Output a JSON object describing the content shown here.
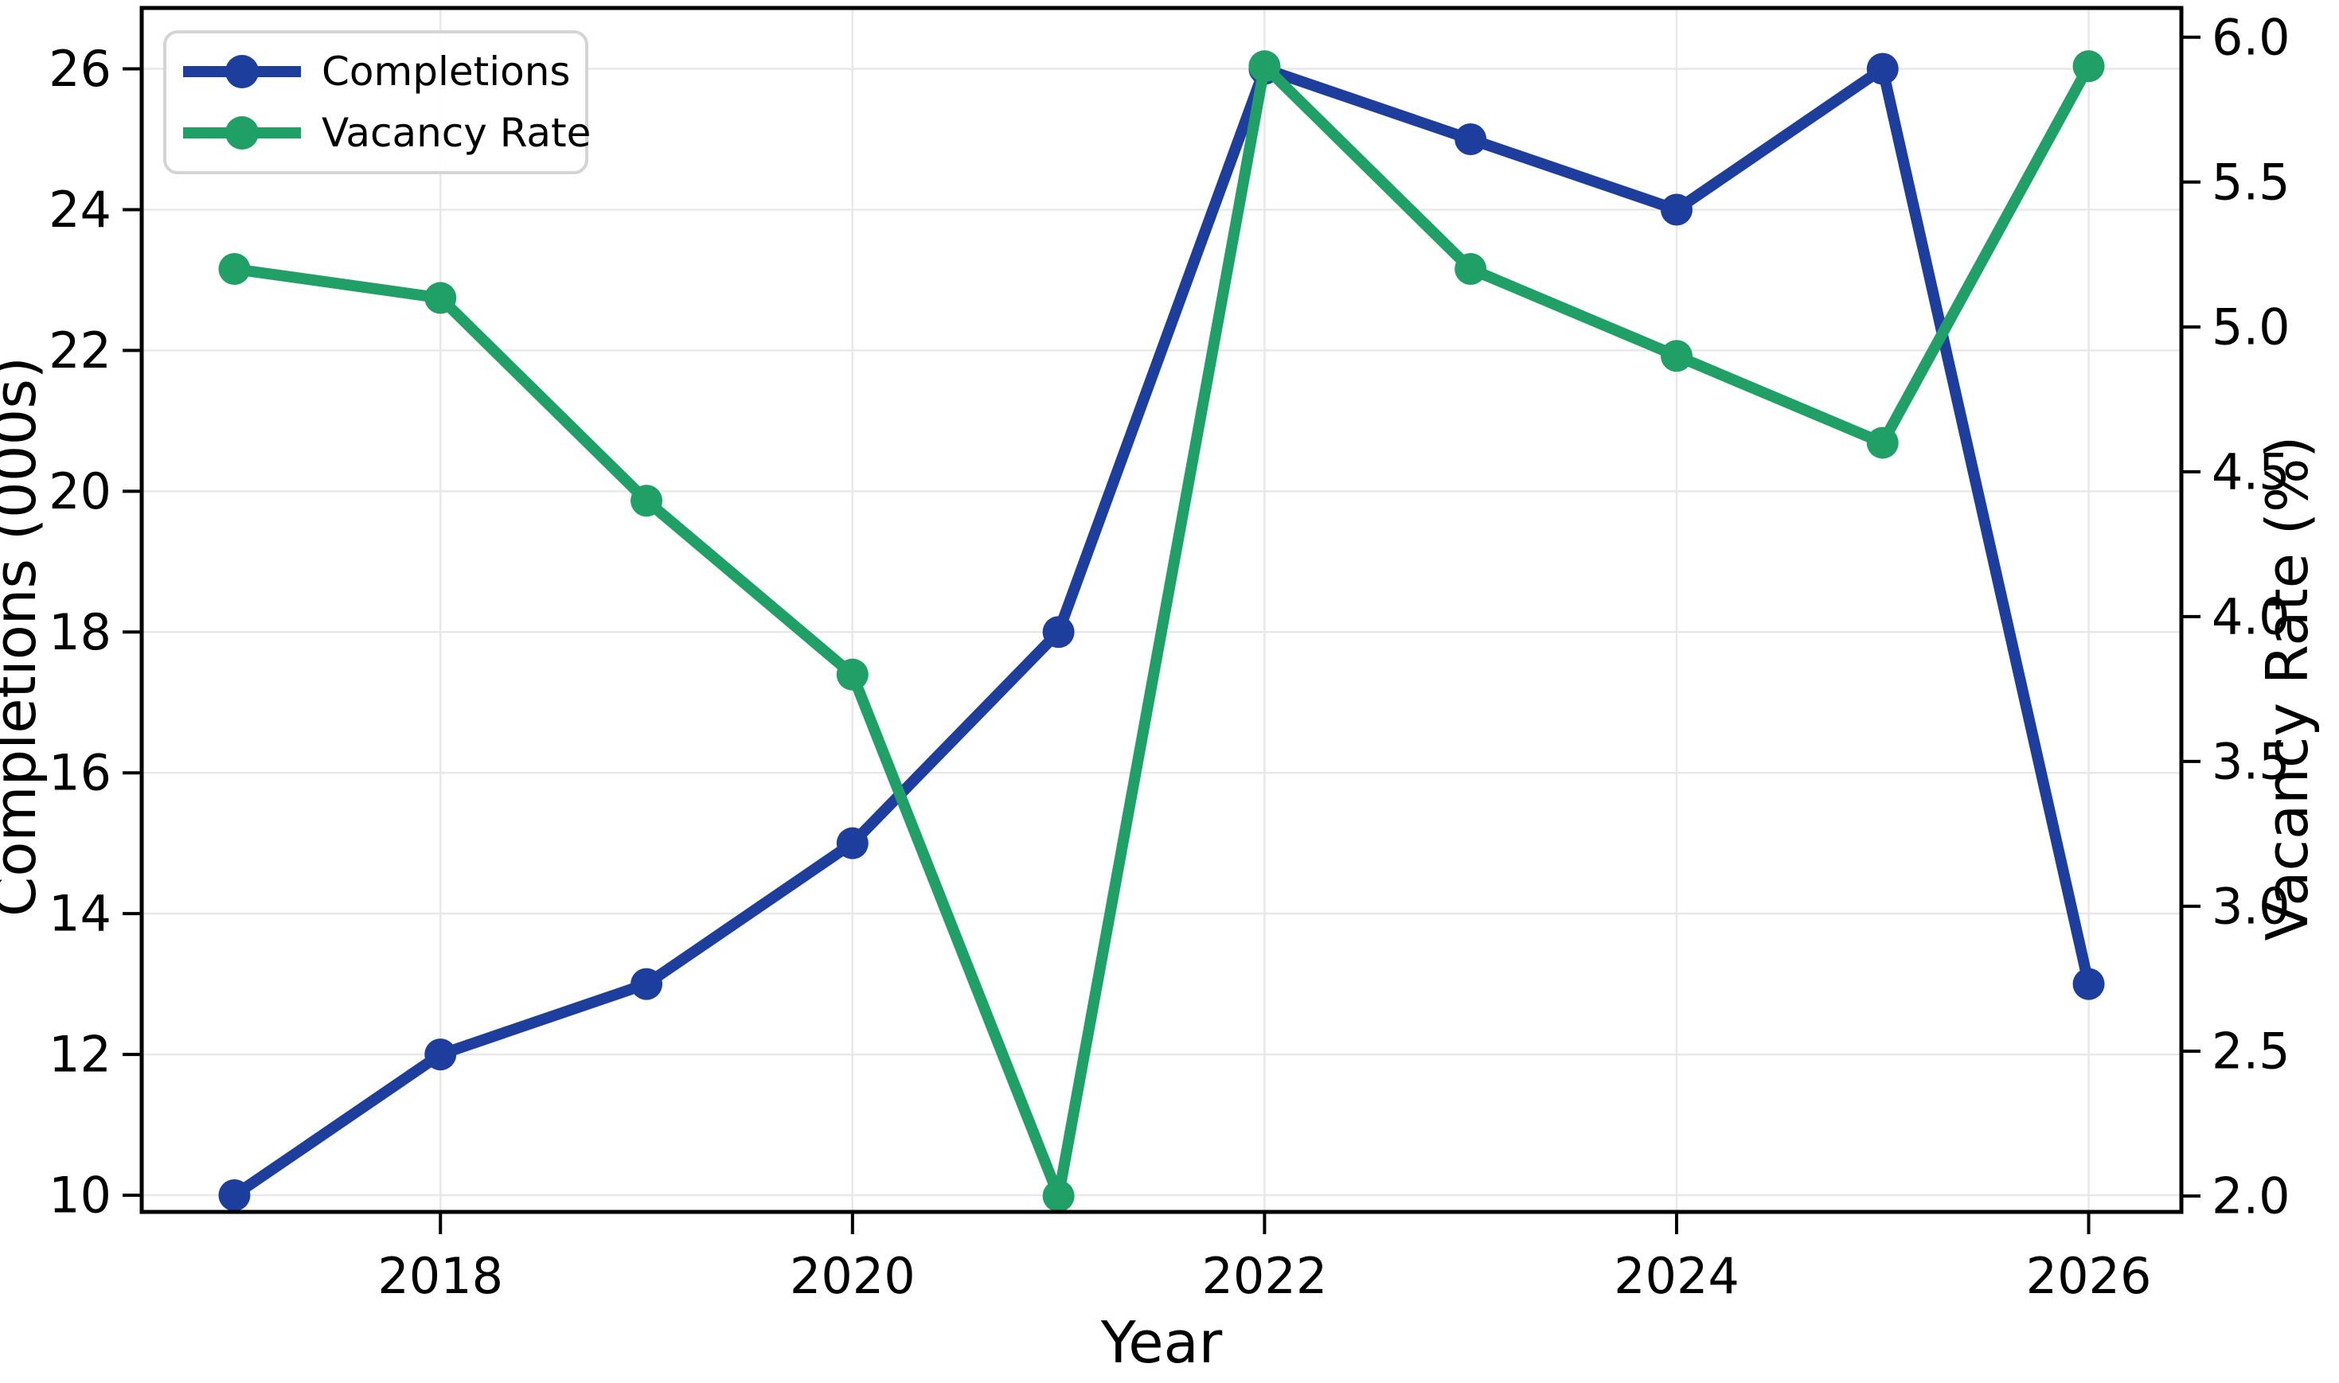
{
  "chart_data": {
    "type": "line",
    "title": "",
    "xlabel": "Year",
    "ylabel_left": "Completions (000s)",
    "ylabel_right": "Vacancy Rate (%)",
    "x": [
      2017,
      2018,
      2019,
      2020,
      2021,
      2022,
      2023,
      2024,
      2025,
      2026
    ],
    "series": [
      {
        "name": "Completions",
        "axis": "left",
        "color": "#1d3e9c",
        "marker": "circle",
        "values": [
          10,
          12,
          13,
          15,
          18,
          26,
          25,
          24,
          26,
          13
        ]
      },
      {
        "name": "Vacancy Rate",
        "axis": "right",
        "color": "#20a066",
        "marker": "circle",
        "values": [
          5.2,
          5.1,
          4.4,
          3.8,
          2.0,
          5.9,
          5.2,
          4.9,
          4.6,
          5.9
        ]
      }
    ],
    "x_axis": {
      "ticks": [
        2018,
        2020,
        2022,
        2024,
        2026
      ],
      "min": 2016.55,
      "max": 2026.45
    },
    "left_axis": {
      "ticks": [
        10,
        12,
        14,
        16,
        18,
        20,
        22,
        24,
        26
      ],
      "min": 9.763,
      "max": 26.865
    },
    "right_axis": {
      "ticks": [
        2.0,
        2.5,
        3.0,
        3.5,
        4.0,
        4.5,
        5.0,
        5.5,
        6.0
      ],
      "min": 1.945,
      "max": 6.101
    },
    "grid": true,
    "legend": {
      "position": "upper left"
    },
    "colors": {
      "grid": "#e8e8e8",
      "spine": "#000000",
      "text": "#000000",
      "background": "#ffffff",
      "legend_border": "#d4d4d4"
    }
  }
}
